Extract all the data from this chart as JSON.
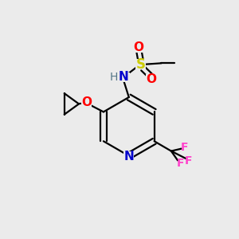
{
  "bg_color": "#ebebeb",
  "atom_colors": {
    "C": "#000000",
    "N": "#0000cc",
    "O": "#ff0000",
    "S": "#cccc00",
    "F": "#ff44cc",
    "H": "#557788"
  },
  "bond_color": "#000000",
  "figsize": [
    3.0,
    3.0
  ],
  "dpi": 100,
  "lw": 1.6
}
